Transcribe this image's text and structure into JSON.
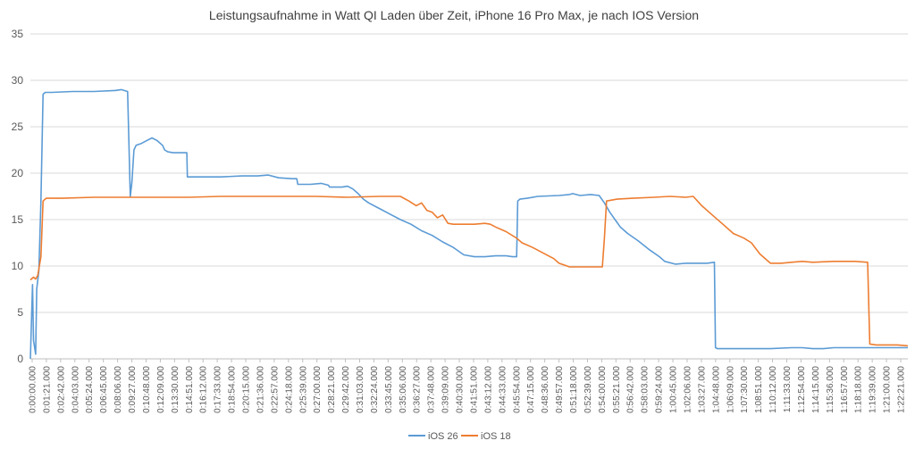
{
  "chart_data": {
    "type": "line",
    "title": "Leistungsaufnahme in Watt QI Laden über Zeit, iPhone 16 Pro Max, je nach IOS Version",
    "xlabel": "",
    "ylabel": "",
    "ylim": [
      0,
      35
    ],
    "yticks": [
      0,
      5,
      10,
      15,
      20,
      25,
      30,
      35
    ],
    "grid": true,
    "legend_position": "bottom",
    "xtick_labels": [
      "0:00:00.000",
      "0:01:21.000",
      "0:02:42.000",
      "0:04:03.000",
      "0:05:24.000",
      "0:06:45.000",
      "0:08:06.000",
      "0:09:27.000",
      "0:10:48.000",
      "0:12:09.000",
      "0:13:30.000",
      "0:14:51.000",
      "0:16:12.000",
      "0:17:33.000",
      "0:18:54.000",
      "0:20:15.000",
      "0:21:36.000",
      "0:22:57.000",
      "0:24:18.000",
      "0:25:39.000",
      "0:27:00.000",
      "0:28:21.000",
      "0:29:42.000",
      "0:31:03.000",
      "0:32:24.000",
      "0:33:45.000",
      "0:35:06.000",
      "0:36:27.000",
      "0:37:48.000",
      "0:39:09.000",
      "0:40:30.000",
      "0:41:51.000",
      "0:43:12.000",
      "0:44:33.000",
      "0:45:54.000",
      "0:47:15.000",
      "0:48:36.000",
      "0:49:57.000",
      "0:51:18.000",
      "0:52:39.000",
      "0:54:00.000",
      "0:55:21.000",
      "0:56:42.000",
      "0:58:03.000",
      "0:59:24.000",
      "1:00:45.000",
      "1:02:06.000",
      "1:03:27.000",
      "1:04:48.000",
      "1:06:09.000",
      "1:07:30.000",
      "1:08:51.000",
      "1:10:12.000",
      "1:11:33.000",
      "1:12:54.000",
      "1:14:15.000",
      "1:15:36.000",
      "1:16:57.000",
      "1:18:18.000",
      "1:19:39.000",
      "1:21:00.000",
      "1:22:21.000"
    ],
    "x_unit": "minutes",
    "series": [
      {
        "name": "iOS 26",
        "color": "#5b9bd5",
        "x": [
          0,
          0.2,
          0.3,
          0.5,
          0.6,
          0.8,
          1.0,
          1.2,
          1.4,
          2.0,
          4.0,
          6.0,
          8.0,
          8.6,
          9.2,
          9.45,
          9.6,
          9.8,
          10.0,
          10.5,
          11.0,
          11.5,
          12.0,
          12.5,
          12.7,
          13.0,
          13.5,
          14.0,
          14.8,
          14.85,
          15.0,
          16.0,
          18.0,
          20.0,
          21.5,
          22.5,
          23.5,
          24.8,
          25.2,
          25.3,
          26.5,
          27.5,
          28.2,
          28.3,
          29.5,
          30.0,
          30.5,
          31.0,
          31.5,
          32.0,
          33.0,
          34.0,
          35.0,
          36.0,
          37.0,
          38.0,
          39.0,
          40.0,
          40.5,
          41.0,
          42.0,
          43.0,
          44.0,
          45.0,
          45.6,
          46.0,
          46.1,
          46.3,
          47.0,
          48.0,
          50.0,
          51.0,
          51.3,
          52.0,
          53.0,
          53.8,
          54.3,
          54.8,
          55.3,
          55.8,
          56.5,
          57.5,
          58.5,
          59.5,
          60.0,
          61.0,
          62.0,
          63.0,
          64.0,
          64.7,
          64.8,
          65.0,
          66.0,
          68.0,
          70.0,
          72.0,
          73.0,
          74.0,
          75.0,
          76.0,
          77.0,
          78.0,
          80.0,
          82.0,
          83.0
        ],
        "y": [
          0,
          8.0,
          2.0,
          0.5,
          7.5,
          9.5,
          17.0,
          28.5,
          28.7,
          28.7,
          28.8,
          28.8,
          28.9,
          29.0,
          28.8,
          17.5,
          19.0,
          22.5,
          23.0,
          23.2,
          23.5,
          23.8,
          23.5,
          23.0,
          22.5,
          22.3,
          22.2,
          22.2,
          22.2,
          19.6,
          19.6,
          19.6,
          19.6,
          19.7,
          19.7,
          19.8,
          19.5,
          19.4,
          19.4,
          18.8,
          18.8,
          18.9,
          18.7,
          18.5,
          18.5,
          18.6,
          18.3,
          17.8,
          17.2,
          16.8,
          16.2,
          15.6,
          15.0,
          14.5,
          13.8,
          13.3,
          12.6,
          12.0,
          11.6,
          11.2,
          11.0,
          11.0,
          11.1,
          11.1,
          11.0,
          11.0,
          17.0,
          17.2,
          17.3,
          17.5,
          17.6,
          17.7,
          17.8,
          17.6,
          17.7,
          17.6,
          16.8,
          15.8,
          15.0,
          14.2,
          13.5,
          12.7,
          11.8,
          11.0,
          10.5,
          10.2,
          10.3,
          10.3,
          10.3,
          10.4,
          1.2,
          1.1,
          1.1,
          1.1,
          1.1,
          1.2,
          1.2,
          1.1,
          1.1,
          1.2,
          1.2,
          1.2,
          1.2,
          1.2,
          1.2
        ]
      },
      {
        "name": "iOS 18",
        "color": "#ed7d31",
        "x": [
          0,
          0.3,
          0.5,
          0.7,
          1.0,
          1.2,
          1.5,
          3.0,
          6.0,
          9.0,
          12.0,
          15.0,
          18.0,
          21.0,
          24.0,
          27.0,
          30.0,
          33.0,
          34.5,
          35.0,
          35.8,
          36.5,
          37.0,
          37.5,
          38.0,
          38.5,
          39.0,
          39.5,
          40.0,
          41.0,
          42.0,
          43.0,
          43.5,
          44.0,
          45.0,
          46.0,
          46.5,
          47.5,
          48.5,
          49.5,
          50.0,
          51.0,
          52.0,
          53.0,
          53.9,
          54.1,
          54.3,
          54.5,
          55.5,
          57.0,
          59.0,
          60.5,
          62.0,
          62.7,
          63.5,
          64.5,
          65.5,
          66.5,
          67.5,
          68.2,
          69.0,
          70.0,
          71.0,
          72.0,
          73.0,
          74.0,
          76.0,
          78.0,
          79.2,
          79.4,
          80.0,
          82.0,
          83.0
        ],
        "y": [
          8.5,
          8.8,
          8.6,
          9.0,
          11.0,
          17.0,
          17.3,
          17.3,
          17.4,
          17.4,
          17.4,
          17.4,
          17.5,
          17.5,
          17.5,
          17.5,
          17.4,
          17.5,
          17.5,
          17.5,
          17.0,
          16.5,
          16.8,
          16.0,
          15.8,
          15.2,
          15.5,
          14.6,
          14.5,
          14.5,
          14.5,
          14.6,
          14.5,
          14.2,
          13.7,
          13.0,
          12.5,
          12.0,
          11.4,
          10.8,
          10.3,
          9.9,
          9.9,
          9.9,
          9.9,
          9.9,
          13.0,
          17.0,
          17.2,
          17.3,
          17.4,
          17.5,
          17.4,
          17.5,
          16.5,
          15.5,
          14.5,
          13.5,
          13.0,
          12.5,
          11.3,
          10.3,
          10.3,
          10.4,
          10.5,
          10.4,
          10.5,
          10.5,
          10.4,
          1.6,
          1.5,
          1.5,
          1.4
        ]
      }
    ]
  }
}
